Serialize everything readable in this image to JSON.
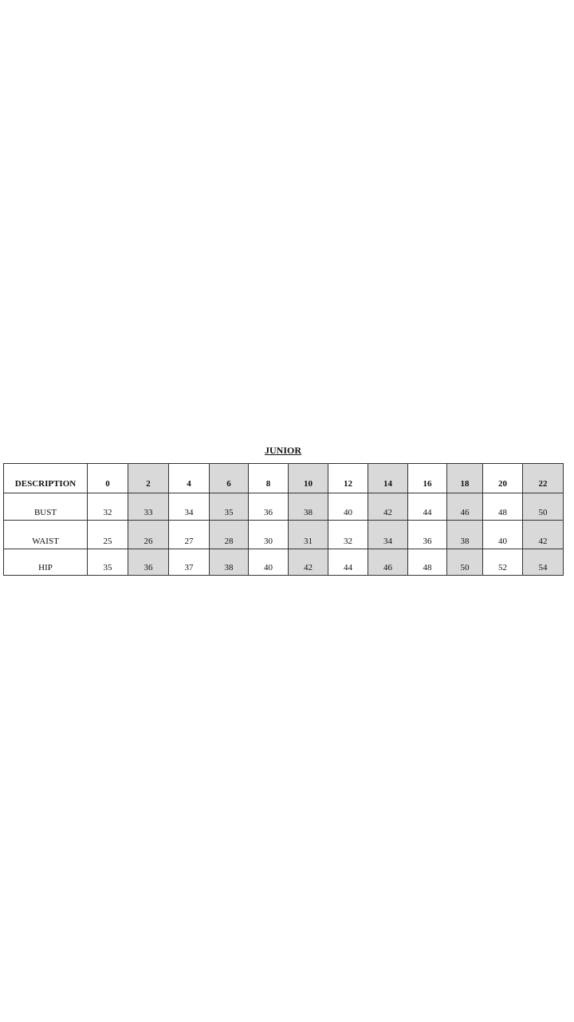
{
  "title": "JUNIOR",
  "header": [
    "DESCRIPTION",
    "0",
    "2",
    "4",
    "6",
    "8",
    "10",
    "12",
    "14",
    "16",
    "18",
    "20",
    "22"
  ],
  "rows": [
    {
      "label": "BUST",
      "values": [
        "32",
        "33",
        "34",
        "35",
        "36",
        "38",
        "40",
        "42",
        "44",
        "46",
        "48",
        "50"
      ]
    },
    {
      "label": "WAIST",
      "values": [
        "25",
        "26",
        "27",
        "28",
        "30",
        "31",
        "32",
        "34",
        "36",
        "38",
        "40",
        "42"
      ]
    },
    {
      "label": "HIP",
      "values": [
        "35",
        "36",
        "37",
        "38",
        "40",
        "42",
        "44",
        "46",
        "48",
        "50",
        "52",
        "54"
      ]
    }
  ],
  "shade_color": "#d9d9d9"
}
